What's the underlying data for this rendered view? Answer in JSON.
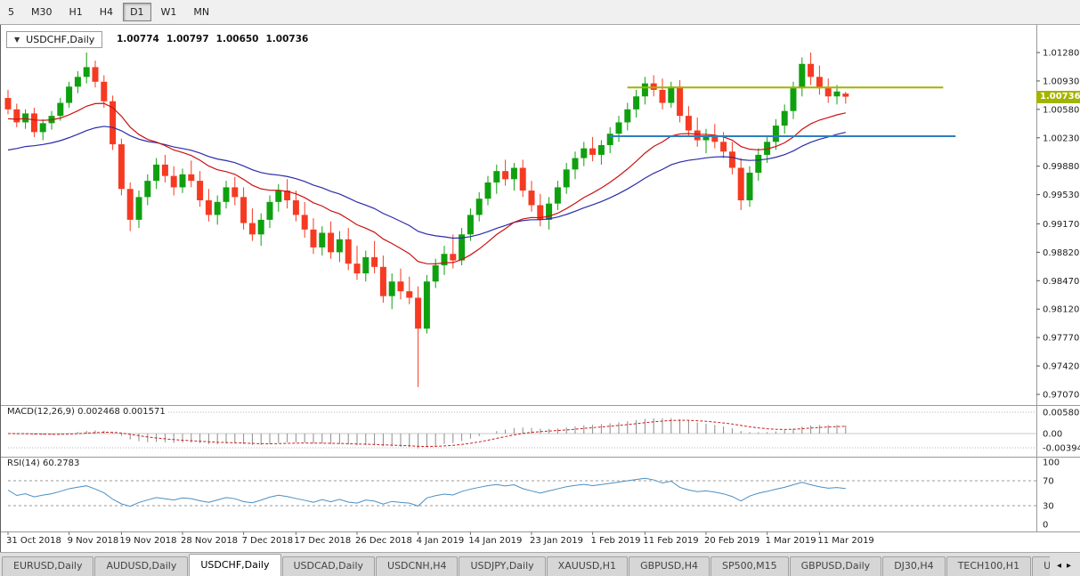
{
  "toolbar": {
    "timeframes": [
      "5",
      "M30",
      "H1",
      "H4",
      "D1",
      "W1",
      "MN"
    ],
    "active_timeframe": "D1"
  },
  "chart": {
    "dropdown_arrow": "▼",
    "symbol_label": "USDCHF,Daily",
    "open": "1.00774",
    "high": "1.00797",
    "low": "1.00650",
    "close": "1.00736",
    "price_tag": "1.00736",
    "y_axis_labels": [
      "1.01280",
      "1.00930",
      "1.00580",
      "1.00230",
      "0.99880",
      "0.99530",
      "0.99170",
      "0.98820",
      "0.98470",
      "0.98120",
      "0.97770",
      "0.97420",
      "0.97070"
    ],
    "x_axis_labels": [
      {
        "label": "31 Oct 2018",
        "index": 0
      },
      {
        "label": "9 Nov 2018",
        "index": 7
      },
      {
        "label": "19 Nov 2018",
        "index": 13
      },
      {
        "label": "28 Nov 2018",
        "index": 20
      },
      {
        "label": "7 Dec 2018",
        "index": 27
      },
      {
        "label": "17 Dec 2018",
        "index": 33
      },
      {
        "label": "26 Dec 2018",
        "index": 40
      },
      {
        "label": "4 Jan 2019",
        "index": 47
      },
      {
        "label": "14 Jan 2019",
        "index": 53
      },
      {
        "label": "23 Jan 2019",
        "index": 60
      },
      {
        "label": "1 Feb 2019",
        "index": 67
      },
      {
        "label": "11 Feb 2019",
        "index": 73
      },
      {
        "label": "20 Feb 2019",
        "index": 80
      },
      {
        "label": "1 Mar 2019",
        "index": 87
      },
      {
        "label": "11 Mar 2019",
        "index": 93
      }
    ],
    "horizontal_lines": [
      {
        "price": 1.0085,
        "color": "#A3B400",
        "x0": 0.605,
        "x1": 0.91
      },
      {
        "price": 1.0025,
        "color": "#2E7FBE",
        "x0": 0.587,
        "x1": 0.922
      }
    ],
    "colors": {
      "bull": "#0FA00F",
      "bear": "#F63A22",
      "ma_fast": "#CC1111",
      "ma_slow": "#2B2BA8",
      "macd_histogram": "#8C8C8C",
      "macd_signal": "#C81E1E",
      "rsi_line": "#4A8FC2",
      "price_tag_bg": "#A3B400"
    }
  },
  "chart_data": {
    "type": "candlestick",
    "symbol": "USDCHF",
    "timeframe": "Daily",
    "y_range": [
      0.9707,
      1.0128
    ],
    "ohlc_order": "open,high,low,close",
    "candles": [
      [
        1.0072,
        1.0082,
        1.0052,
        1.0058
      ],
      [
        1.0058,
        1.0065,
        1.0036,
        1.0042
      ],
      [
        1.0042,
        1.0058,
        1.0034,
        1.0053
      ],
      [
        1.0053,
        1.006,
        1.0024,
        1.003
      ],
      [
        1.003,
        1.0046,
        1.002,
        1.0041
      ],
      [
        1.0041,
        1.0056,
        1.0033,
        1.005
      ],
      [
        1.005,
        1.0072,
        1.0044,
        1.0066
      ],
      [
        1.0066,
        1.0092,
        1.006,
        1.0086
      ],
      [
        1.0086,
        1.0105,
        1.0078,
        1.0098
      ],
      [
        1.0098,
        1.0128,
        1.009,
        1.011
      ],
      [
        1.011,
        1.0118,
        1.0085,
        1.0092
      ],
      [
        1.0092,
        1.01,
        1.006,
        1.0068
      ],
      [
        1.0068,
        1.0075,
        1.0008,
        1.0015
      ],
      [
        1.0015,
        1.0022,
        0.9952,
        0.996
      ],
      [
        0.996,
        0.9968,
        0.9908,
        0.9922
      ],
      [
        0.9922,
        0.9958,
        0.9912,
        0.995
      ],
      [
        0.995,
        0.9978,
        0.994,
        0.997
      ],
      [
        0.997,
        0.9998,
        0.996,
        0.999
      ],
      [
        0.999,
        1.0002,
        0.9968,
        0.9976
      ],
      [
        0.9976,
        0.9988,
        0.9952,
        0.9962
      ],
      [
        0.9962,
        0.9985,
        0.9955,
        0.9978
      ],
      [
        0.9978,
        0.9995,
        0.9962,
        0.997
      ],
      [
        0.997,
        0.9982,
        0.9938,
        0.9946
      ],
      [
        0.9946,
        0.996,
        0.992,
        0.9928
      ],
      [
        0.9928,
        0.9952,
        0.9916,
        0.9944
      ],
      [
        0.9944,
        0.997,
        0.9936,
        0.9962
      ],
      [
        0.9962,
        0.9975,
        0.994,
        0.995
      ],
      [
        0.995,
        0.9962,
        0.991,
        0.9918
      ],
      [
        0.9918,
        0.9936,
        0.9896,
        0.9904
      ],
      [
        0.9904,
        0.993,
        0.989,
        0.9922
      ],
      [
        0.9922,
        0.9952,
        0.9912,
        0.9944
      ],
      [
        0.9944,
        0.9966,
        0.9932,
        0.9958
      ],
      [
        0.9958,
        0.9972,
        0.9936,
        0.9946
      ],
      [
        0.9946,
        0.9958,
        0.992,
        0.9928
      ],
      [
        0.9928,
        0.9944,
        0.99,
        0.991
      ],
      [
        0.991,
        0.9924,
        0.988,
        0.9888
      ],
      [
        0.9888,
        0.9914,
        0.9878,
        0.9906
      ],
      [
        0.9906,
        0.992,
        0.9874,
        0.9882
      ],
      [
        0.9882,
        0.9908,
        0.987,
        0.9898
      ],
      [
        0.9898,
        0.9912,
        0.986,
        0.9868
      ],
      [
        0.9868,
        0.989,
        0.9848,
        0.9856
      ],
      [
        0.9856,
        0.9884,
        0.9846,
        0.9876
      ],
      [
        0.9876,
        0.9896,
        0.9856,
        0.9864
      ],
      [
        0.9864,
        0.9878,
        0.982,
        0.9828
      ],
      [
        0.9828,
        0.9856,
        0.9812,
        0.9846
      ],
      [
        0.9846,
        0.9862,
        0.9824,
        0.9834
      ],
      [
        0.9834,
        0.9852,
        0.9818,
        0.9826
      ],
      [
        0.9826,
        0.984,
        0.9716,
        0.9788
      ],
      [
        0.9788,
        0.9854,
        0.9782,
        0.9846
      ],
      [
        0.9846,
        0.9874,
        0.9838,
        0.9866
      ],
      [
        0.9866,
        0.989,
        0.9854,
        0.988
      ],
      [
        0.988,
        0.9904,
        0.9862,
        0.9872
      ],
      [
        0.9872,
        0.9912,
        0.9866,
        0.9904
      ],
      [
        0.9904,
        0.9936,
        0.9896,
        0.9928
      ],
      [
        0.9928,
        0.9956,
        0.992,
        0.9948
      ],
      [
        0.9948,
        0.9976,
        0.994,
        0.9968
      ],
      [
        0.9968,
        0.999,
        0.9954,
        0.9982
      ],
      [
        0.9982,
        0.9996,
        0.9964,
        0.9972
      ],
      [
        0.9972,
        0.9992,
        0.9958,
        0.9986
      ],
      [
        0.9986,
        0.9996,
        0.995,
        0.9958
      ],
      [
        0.9958,
        0.997,
        0.9932,
        0.994
      ],
      [
        0.994,
        0.9954,
        0.9914,
        0.9922
      ],
      [
        0.9922,
        0.995,
        0.991,
        0.9942
      ],
      [
        0.9942,
        0.997,
        0.9934,
        0.9962
      ],
      [
        0.9962,
        0.9992,
        0.9954,
        0.9984
      ],
      [
        0.9984,
        1.0006,
        0.9972,
        0.9998
      ],
      [
        0.9998,
        1.0018,
        0.9988,
        1.001
      ],
      [
        1.001,
        1.0024,
        0.9994,
        1.0002
      ],
      [
        1.0002,
        1.002,
        0.999,
        1.0014
      ],
      [
        1.0014,
        1.0036,
        1.0004,
        1.0028
      ],
      [
        1.0028,
        1.005,
        1.0018,
        1.0042
      ],
      [
        1.0042,
        1.0066,
        1.0032,
        1.0058
      ],
      [
        1.0058,
        1.0082,
        1.0048,
        1.0074
      ],
      [
        1.0074,
        1.0098,
        1.0064,
        1.009
      ],
      [
        1.009,
        1.01,
        1.0074,
        1.0082
      ],
      [
        1.0082,
        1.0096,
        1.0058,
        1.0066
      ],
      [
        1.0066,
        1.0092,
        1.006,
        1.0086
      ],
      [
        1.0086,
        1.0094,
        1.0042,
        1.005
      ],
      [
        1.005,
        1.0062,
        1.0024,
        1.0032
      ],
      [
        1.0032,
        1.0048,
        1.0012,
        1.002
      ],
      [
        1.002,
        1.0034,
        1.0004,
        1.0026
      ],
      [
        1.0026,
        1.004,
        1.001,
        1.0018
      ],
      [
        1.0018,
        1.003,
        0.9998,
        1.0006
      ],
      [
        1.0006,
        1.0018,
        0.9978,
        0.9986
      ],
      [
        0.9986,
        0.9998,
        0.9934,
        0.9946
      ],
      [
        0.9946,
        0.9988,
        0.9938,
        0.998
      ],
      [
        0.998,
        1.001,
        0.997,
        1.0002
      ],
      [
        1.0002,
        1.0026,
        0.9992,
        1.0018
      ],
      [
        1.0018,
        1.0046,
        1.0008,
        1.0038
      ],
      [
        1.0038,
        1.0064,
        1.0028,
        1.0056
      ],
      [
        1.0056,
        1.0092,
        1.0046,
        1.0084
      ],
      [
        1.0084,
        1.0122,
        1.0074,
        1.0114
      ],
      [
        1.0114,
        1.0128,
        1.0088,
        1.0098
      ],
      [
        1.0098,
        1.0112,
        1.0076,
        1.0084
      ],
      [
        1.0084,
        1.0096,
        1.0066,
        1.0074
      ],
      [
        1.0074,
        1.0088,
        1.0064,
        1.008
      ],
      [
        1.00774,
        1.00797,
        1.0065,
        1.00736
      ]
    ]
  },
  "macd": {
    "label": "MACD(12,26,9) 0.002468 0.001571",
    "axis_labels": [
      "0.005802",
      "0.00",
      "-0.003945"
    ],
    "fast": 12,
    "slow": 26,
    "signal": 9
  },
  "rsi": {
    "label": "RSI(14) 60.2783",
    "axis_labels": [
      "100",
      "70",
      "30",
      "0"
    ],
    "period": 14,
    "levels": [
      70,
      30
    ]
  },
  "tabs": {
    "items": [
      "EURUSD,Daily",
      "AUDUSD,Daily",
      "USDCHF,Daily",
      "USDCAD,Daily",
      "USDCNH,H4",
      "USDJPY,Daily",
      "XAUUSD,H1",
      "GBPUSD,H4",
      "SP500,M15",
      "GBPUSD,Daily",
      "DJ30,H4",
      "TECH100,H1",
      "UKC"
    ],
    "active": "USDCHF,Daily",
    "scroll_left": "◂",
    "scroll_right": "▸"
  }
}
